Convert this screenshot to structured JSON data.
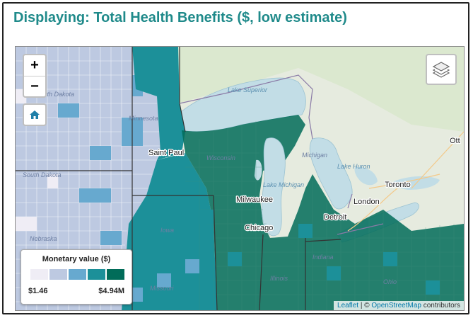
{
  "header": {
    "title": "Displaying: Total Health Benefits ($, low estimate)"
  },
  "controls": {
    "zoom_in": "+",
    "zoom_out": "−"
  },
  "legend": {
    "title": "Monetary value ($)",
    "min": "$1.46",
    "max": "$4.94M",
    "colors": [
      "#efedf5",
      "#bdc9e1",
      "#67a9cf",
      "#1c9099",
      "#016c59"
    ]
  },
  "attribution": {
    "leaflet": "Leaflet",
    "separator": " | © ",
    "osm": "OpenStreetMap",
    "suffix": " contributors"
  },
  "map_labels": {
    "lake_superior": "Lake Superior",
    "lake_michigan": "Lake Michigan",
    "lake_huron": "Lake Huron",
    "wisconsin": "Wisconsin",
    "minnesota": "Minnesota",
    "michigan": "Michigan",
    "north_dakota": "North Dakota",
    "south_dakota": "South Dakota",
    "iowa": "Iowa",
    "nebraska": "Nebraska",
    "saint_paul": "Saint Paul",
    "milwaukee": "Milwaukee",
    "chicago": "Chicago",
    "detroit": "Detroit",
    "toronto": "Toronto",
    "london": "London",
    "ottawa": "Ott",
    "illinois": "Illinois",
    "ohio": "Ohio",
    "indiana": "Indiana",
    "missouri": "Missouri"
  },
  "colors": {
    "accent": "#1f8a8a",
    "water": "#c2dde6",
    "land": "#e7ede0"
  },
  "icons": {
    "home": "home-icon",
    "layers": "layers-icon"
  }
}
